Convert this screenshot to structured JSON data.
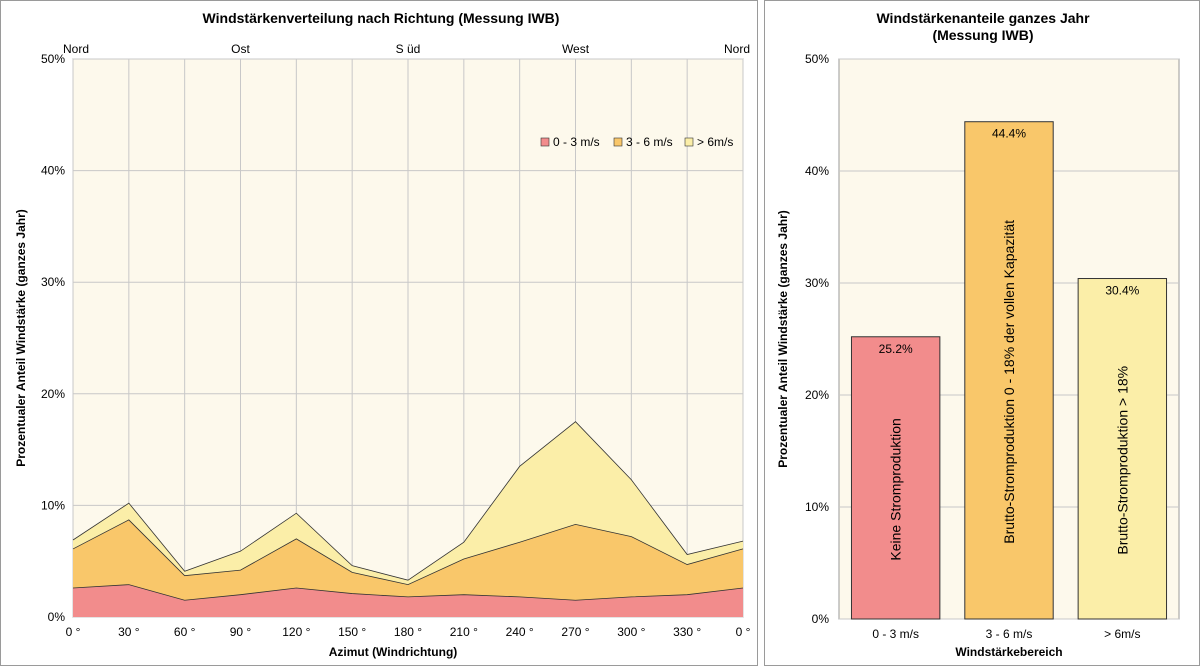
{
  "chart_data": [
    {
      "type": "area",
      "stacked": true,
      "title": "Windstärkenverteilung nach Richtung (Messung IWB)",
      "xlabel": "Azimut (Windrichtung)",
      "ylabel": "Prozentualer Anteil Windstärke (ganzes Jahr)",
      "x": [
        0,
        30,
        60,
        90,
        120,
        150,
        180,
        210,
        240,
        270,
        300,
        330,
        360
      ],
      "x_tick_labels": [
        "0 °",
        "30 °",
        "60 °",
        "90 °",
        "120 °",
        "150 °",
        "180 °",
        "210 °",
        "240 °",
        "270 °",
        "300 °",
        "330 °",
        "0 °"
      ],
      "ylim": [
        0,
        50
      ],
      "y_tick_labels": [
        "0%",
        "10%",
        "20%",
        "30%",
        "40%",
        "50%"
      ],
      "direction_labels": [
        {
          "text": "Nord",
          "at": 0
        },
        {
          "text": "Ost",
          "at": 90
        },
        {
          "text": "S üd",
          "at": 180
        },
        {
          "text": "West",
          "at": 270
        },
        {
          "text": "Nord",
          "at": 360
        }
      ],
      "grid": true,
      "legend_position": "top-right",
      "series": [
        {
          "name": "0 - 3 m/s",
          "color": "#f28c8c",
          "values": [
            2.6,
            2.9,
            1.5,
            2.0,
            2.6,
            2.1,
            1.8,
            2.0,
            1.8,
            1.5,
            1.8,
            2.0,
            2.6
          ]
        },
        {
          "name": "3 - 6 m/s",
          "color": "#f9c76a",
          "values": [
            3.5,
            5.8,
            2.2,
            2.2,
            4.4,
            1.9,
            1.1,
            3.2,
            4.9,
            6.8,
            5.4,
            2.7,
            3.5
          ]
        },
        {
          "name": "> 6m/s",
          "color": "#fbeea8",
          "values": [
            0.8,
            1.5,
            0.4,
            1.7,
            2.3,
            0.6,
            0.4,
            1.5,
            6.8,
            9.2,
            5.1,
            0.9,
            0.7
          ]
        }
      ]
    },
    {
      "type": "bar",
      "title": "Windstärkenanteile ganzes Jahr",
      "subtitle": "(Messung IWB)",
      "xlabel": "Windstärkebereich",
      "ylabel": "Prozentualer Anteil Windstärke (ganzes Jahr)",
      "categories": [
        "0 - 3 m/s",
        "3 - 6 m/s",
        "> 6m/s"
      ],
      "values": [
        25.2,
        44.4,
        30.4
      ],
      "data_labels": [
        "25.2%",
        "44.4%",
        "30.4%"
      ],
      "bar_texts": [
        "Keine Stromproduktion",
        "Brutto-Stromproduktion  0 - 18% der vollen Kapazität",
        "Brutto-Stromproduktion  > 18%"
      ],
      "colors": [
        "#f28c8c",
        "#f9c76a",
        "#fbeea8"
      ],
      "ylim": [
        0,
        50
      ],
      "y_tick_labels": [
        "0%",
        "10%",
        "20%",
        "30%",
        "40%",
        "50%"
      ],
      "grid": true
    }
  ],
  "colors": {
    "plot_background": "#fdf9ec",
    "gridline": "#c8c8c8",
    "outline": "#333333"
  }
}
